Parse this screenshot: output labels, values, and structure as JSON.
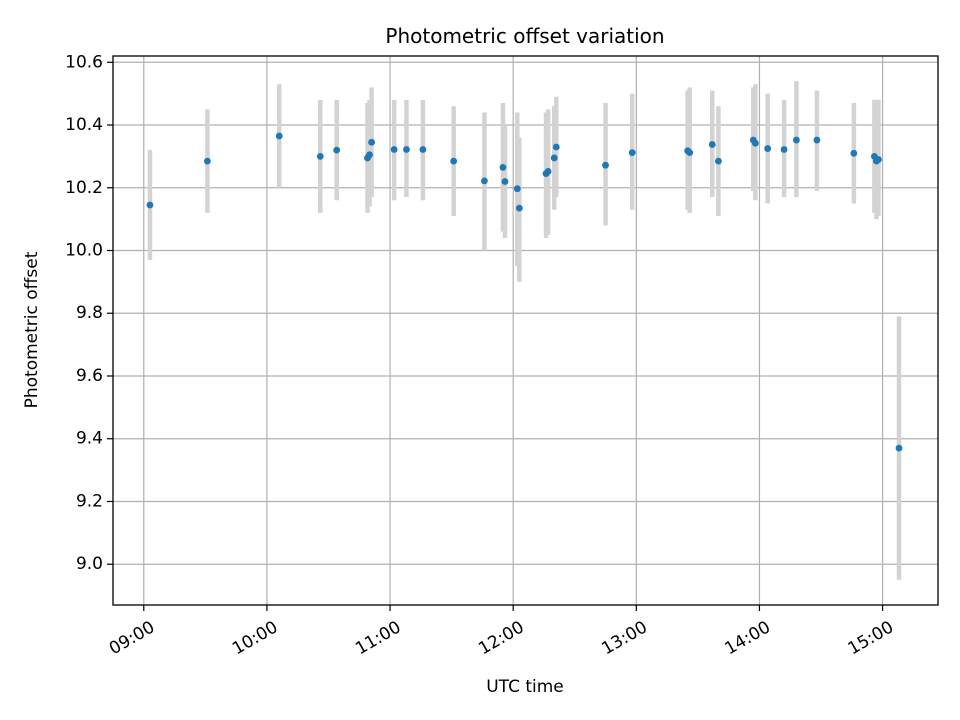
{
  "chart_data": {
    "type": "scatter",
    "title": "Photometric offset variation",
    "xlabel": "UTC time",
    "ylabel": "Photometric offset",
    "x_tick_labels": [
      "09:00",
      "10:00",
      "11:00",
      "12:00",
      "13:00",
      "14:00",
      "15:00"
    ],
    "y_tick_labels": [
      "9.0",
      "9.2",
      "9.4",
      "9.6",
      "9.8",
      "10.0",
      "10.2",
      "10.4",
      "10.6"
    ],
    "y_ticks": [
      9.0,
      9.2,
      9.4,
      9.6,
      9.8,
      10.0,
      10.2,
      10.4,
      10.6
    ],
    "xlim": [
      "08:45",
      "15:27"
    ],
    "ylim": [
      8.87,
      10.62
    ],
    "grid": true,
    "marker_color": "#1f77b4",
    "errorbar_color": "#d3d3d3",
    "points": [
      {
        "t": "09:03",
        "y": 10.145,
        "lo": 9.97,
        "hi": 10.32
      },
      {
        "t": "09:31",
        "y": 10.285,
        "lo": 10.12,
        "hi": 10.45
      },
      {
        "t": "10:06",
        "y": 10.365,
        "lo": 10.2,
        "hi": 10.53
      },
      {
        "t": "10:26",
        "y": 10.3,
        "lo": 10.12,
        "hi": 10.48
      },
      {
        "t": "10:34",
        "y": 10.32,
        "lo": 10.16,
        "hi": 10.48
      },
      {
        "t": "10:49",
        "y": 10.295,
        "lo": 10.12,
        "hi": 10.47
      },
      {
        "t": "10:50",
        "y": 10.305,
        "lo": 10.14,
        "hi": 10.48
      },
      {
        "t": "10:51",
        "y": 10.345,
        "lo": 10.17,
        "hi": 10.52
      },
      {
        "t": "11:02",
        "y": 10.322,
        "lo": 10.16,
        "hi": 10.48
      },
      {
        "t": "11:08",
        "y": 10.322,
        "lo": 10.17,
        "hi": 10.48
      },
      {
        "t": "11:16",
        "y": 10.322,
        "lo": 10.16,
        "hi": 10.48
      },
      {
        "t": "11:31",
        "y": 10.285,
        "lo": 10.11,
        "hi": 10.46
      },
      {
        "t": "11:46",
        "y": 10.222,
        "lo": 10.0,
        "hi": 10.44
      },
      {
        "t": "11:55",
        "y": 10.265,
        "lo": 10.06,
        "hi": 10.47
      },
      {
        "t": "11:56",
        "y": 10.22,
        "lo": 10.04,
        "hi": 10.4
      },
      {
        "t": "12:02",
        "y": 10.197,
        "lo": 9.95,
        "hi": 10.44
      },
      {
        "t": "12:03",
        "y": 10.135,
        "lo": 9.9,
        "hi": 10.36
      },
      {
        "t": "12:16",
        "y": 10.245,
        "lo": 10.04,
        "hi": 10.44
      },
      {
        "t": "12:17",
        "y": 10.252,
        "lo": 10.05,
        "hi": 10.45
      },
      {
        "t": "12:20",
        "y": 10.295,
        "lo": 10.13,
        "hi": 10.46
      },
      {
        "t": "12:21",
        "y": 10.33,
        "lo": 10.17,
        "hi": 10.49
      },
      {
        "t": "12:45",
        "y": 10.272,
        "lo": 10.08,
        "hi": 10.47
      },
      {
        "t": "12:58",
        "y": 10.312,
        "lo": 10.13,
        "hi": 10.5
      },
      {
        "t": "13:25",
        "y": 10.318,
        "lo": 10.13,
        "hi": 10.51
      },
      {
        "t": "13:26",
        "y": 10.312,
        "lo": 10.12,
        "hi": 10.52
      },
      {
        "t": "13:37",
        "y": 10.338,
        "lo": 10.17,
        "hi": 10.51
      },
      {
        "t": "13:40",
        "y": 10.285,
        "lo": 10.11,
        "hi": 10.46
      },
      {
        "t": "13:57",
        "y": 10.352,
        "lo": 10.19,
        "hi": 10.52
      },
      {
        "t": "13:58",
        "y": 10.342,
        "lo": 10.16,
        "hi": 10.53
      },
      {
        "t": "14:04",
        "y": 10.325,
        "lo": 10.15,
        "hi": 10.5
      },
      {
        "t": "14:12",
        "y": 10.322,
        "lo": 10.17,
        "hi": 10.48
      },
      {
        "t": "14:18",
        "y": 10.352,
        "lo": 10.17,
        "hi": 10.54
      },
      {
        "t": "14:28",
        "y": 10.352,
        "lo": 10.19,
        "hi": 10.51
      },
      {
        "t": "14:46",
        "y": 10.31,
        "lo": 10.15,
        "hi": 10.47
      },
      {
        "t": "14:56",
        "y": 10.3,
        "lo": 10.12,
        "hi": 10.48
      },
      {
        "t": "14:57",
        "y": 10.285,
        "lo": 10.1,
        "hi": 10.48
      },
      {
        "t": "14:58",
        "y": 10.29,
        "lo": 10.11,
        "hi": 10.48
      },
      {
        "t": "15:08",
        "y": 9.37,
        "lo": 8.95,
        "hi": 9.79
      }
    ]
  }
}
